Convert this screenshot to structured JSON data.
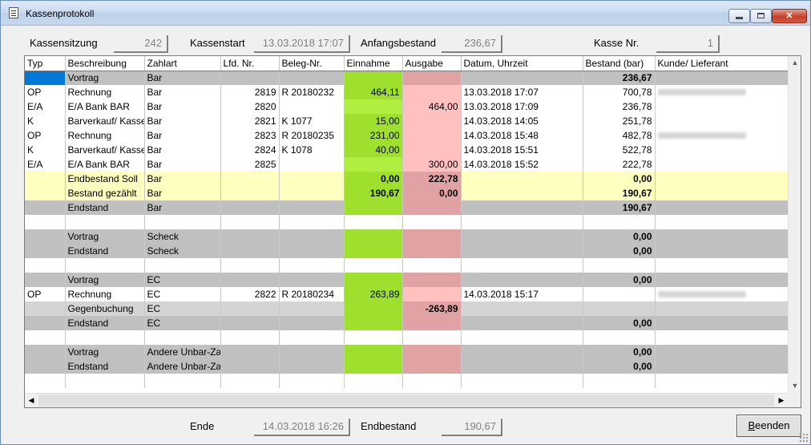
{
  "window": {
    "title": "Kassenprotokoll"
  },
  "header": {
    "kassensitzung_label": "Kassensitzung",
    "kassensitzung_value": "242",
    "kassenstart_label": "Kassenstart",
    "kassenstart_value": "13.03.2018 17:07",
    "anfangsbestand_label": "Anfangsbestand",
    "anfangsbestand_value": "236,67",
    "kasse_nr_label": "Kasse Nr.",
    "kasse_nr_value": "1"
  },
  "table": {
    "columns": [
      "Typ",
      "Beschreibung",
      "Zahlart",
      "Lfd. Nr.",
      "Beleg-Nr.",
      "Einnahme",
      "Ausgabe",
      "Datum, Uhrzeit",
      "Bestand (bar)",
      "Kunde/ Lieferant"
    ],
    "rows": [
      {
        "style": "gray",
        "selected": true,
        "typ": "",
        "beschreibung": "Vortrag",
        "zahlart": "Bar",
        "lfd": "",
        "beleg": "",
        "einnahme": "",
        "ausgabe": "",
        "datum": "",
        "bestand": "236,67",
        "bestand_bold": true,
        "kunde_blur": false
      },
      {
        "style": "white",
        "typ": "OP",
        "beschreibung": "Rechnung",
        "zahlart": "Bar",
        "lfd": "2819",
        "beleg": "R 20180232",
        "einnahme": "464,11",
        "ausgabe": "",
        "datum": "13.03.2018 17:07",
        "bestand": "700,78",
        "kunde_blur": true
      },
      {
        "style": "white",
        "typ": "E/A",
        "beschreibung": "E/A Bank BAR",
        "zahlart": "Bar",
        "lfd": "2820",
        "beleg": "",
        "einnahme": "",
        "ausgabe": "464,00",
        "datum": "13.03.2018 17:09",
        "bestand": "236,78",
        "kunde_blur": false
      },
      {
        "style": "white",
        "typ": "K",
        "beschreibung": "Barverkauf/ Kasse",
        "zahlart": "Bar",
        "lfd": "2821",
        "beleg": "K 1077",
        "einnahme": "15,00",
        "ausgabe": "",
        "datum": "14.03.2018 14:05",
        "bestand": "251,78",
        "kunde_blur": false
      },
      {
        "style": "white",
        "typ": "OP",
        "beschreibung": "Rechnung",
        "zahlart": "Bar",
        "lfd": "2823",
        "beleg": "R 20180235",
        "einnahme": "231,00",
        "ausgabe": "",
        "datum": "14.03.2018 15:48",
        "bestand": "482,78",
        "kunde_blur": true
      },
      {
        "style": "white",
        "typ": "K",
        "beschreibung": "Barverkauf/ Kasse",
        "zahlart": "Bar",
        "lfd": "2824",
        "beleg": "K 1078",
        "einnahme": "40,00",
        "ausgabe": "",
        "datum": "14.03.2018 15:51",
        "bestand": "522,78",
        "kunde_blur": false
      },
      {
        "style": "white",
        "typ": "E/A",
        "beschreibung": "E/A Bank BAR",
        "zahlart": "Bar",
        "lfd": "2825",
        "beleg": "",
        "einnahme": "",
        "ausgabe": "300,00",
        "datum": "14.03.2018 15:52",
        "bestand": "222,78",
        "kunde_blur": false
      },
      {
        "style": "yellow",
        "typ": "",
        "beschreibung": "Endbestand Soll",
        "zahlart": "Bar",
        "lfd": "",
        "beleg": "",
        "einnahme": "0,00",
        "ausgabe": "222,78",
        "datum": "",
        "bestand": "0,00",
        "bold": true,
        "kunde_blur": false
      },
      {
        "style": "yellow",
        "typ": "",
        "beschreibung": "Bestand gezählt",
        "zahlart": "Bar",
        "lfd": "",
        "beleg": "",
        "einnahme": "190,67",
        "ausgabe": "0,00",
        "datum": "",
        "bestand": "190,67",
        "bold": true,
        "kunde_blur": false
      },
      {
        "style": "gray",
        "typ": "",
        "beschreibung": "Endstand",
        "zahlart": "Bar",
        "lfd": "",
        "beleg": "",
        "einnahme": "",
        "ausgabe": "",
        "datum": "",
        "bestand": "190,67",
        "bestand_bold": true,
        "kunde_blur": false
      },
      {
        "style": "blank"
      },
      {
        "style": "gray",
        "typ": "",
        "beschreibung": "Vortrag",
        "zahlart": "Scheck",
        "lfd": "",
        "beleg": "",
        "einnahme": "",
        "ausgabe": "",
        "datum": "",
        "bestand": "0,00",
        "bestand_bold": true,
        "kunde_blur": false
      },
      {
        "style": "gray",
        "typ": "",
        "beschreibung": "Endstand",
        "zahlart": "Scheck",
        "lfd": "",
        "beleg": "",
        "einnahme": "",
        "ausgabe": "",
        "datum": "",
        "bestand": "0,00",
        "bestand_bold": true,
        "kunde_blur": false
      },
      {
        "style": "blank"
      },
      {
        "style": "gray",
        "typ": "",
        "beschreibung": "Vortrag",
        "zahlart": "EC",
        "lfd": "",
        "beleg": "",
        "einnahme": "",
        "ausgabe": "",
        "datum": "",
        "bestand": "0,00",
        "bestand_bold": true,
        "kunde_blur": false
      },
      {
        "style": "white",
        "typ": "OP",
        "beschreibung": "Rechnung",
        "zahlart": "EC",
        "lfd": "2822",
        "beleg": "R 20180234",
        "einnahme": "263,89",
        "ausgabe": "",
        "datum": "14.03.2018 15:17",
        "bestand": "",
        "kunde_blur": true
      },
      {
        "style": "light",
        "typ": "",
        "beschreibung": "Gegenbuchung",
        "zahlart": "EC",
        "lfd": "",
        "beleg": "",
        "einnahme": "",
        "ausgabe": "-263,89",
        "ausgabe_bold": true,
        "datum": "",
        "bestand": "",
        "kunde_blur": false
      },
      {
        "style": "gray",
        "typ": "",
        "beschreibung": "Endstand",
        "zahlart": "EC",
        "lfd": "",
        "beleg": "",
        "einnahme": "",
        "ausgabe": "",
        "datum": "",
        "bestand": "0,00",
        "bestand_bold": true,
        "kunde_blur": false
      },
      {
        "style": "blank"
      },
      {
        "style": "gray",
        "typ": "",
        "beschreibung": "Vortrag",
        "zahlart": "Andere Unbar-Za",
        "lfd": "",
        "beleg": "",
        "einnahme": "",
        "ausgabe": "",
        "datum": "",
        "bestand": "0,00",
        "bestand_bold": true,
        "kunde_blur": false
      },
      {
        "style": "gray",
        "typ": "",
        "beschreibung": "Endstand",
        "zahlart": "Andere Unbar-Za",
        "lfd": "",
        "beleg": "",
        "einnahme": "",
        "ausgabe": "",
        "datum": "",
        "bestand": "0,00",
        "bestand_bold": true,
        "kunde_blur": false
      },
      {
        "style": "blank"
      }
    ]
  },
  "footer": {
    "ende_label": "Ende",
    "ende_value": "14.03.2018 16:26",
    "endbestand_label": "Endbestand",
    "endbestand_value": "190,67",
    "beenden_prefix": "B",
    "beenden_rest": "eenden"
  },
  "icons": {
    "window_icon": "document-icon",
    "minimize": "minimize-icon",
    "maximize": "maximize-icon",
    "close": "close-icon"
  }
}
